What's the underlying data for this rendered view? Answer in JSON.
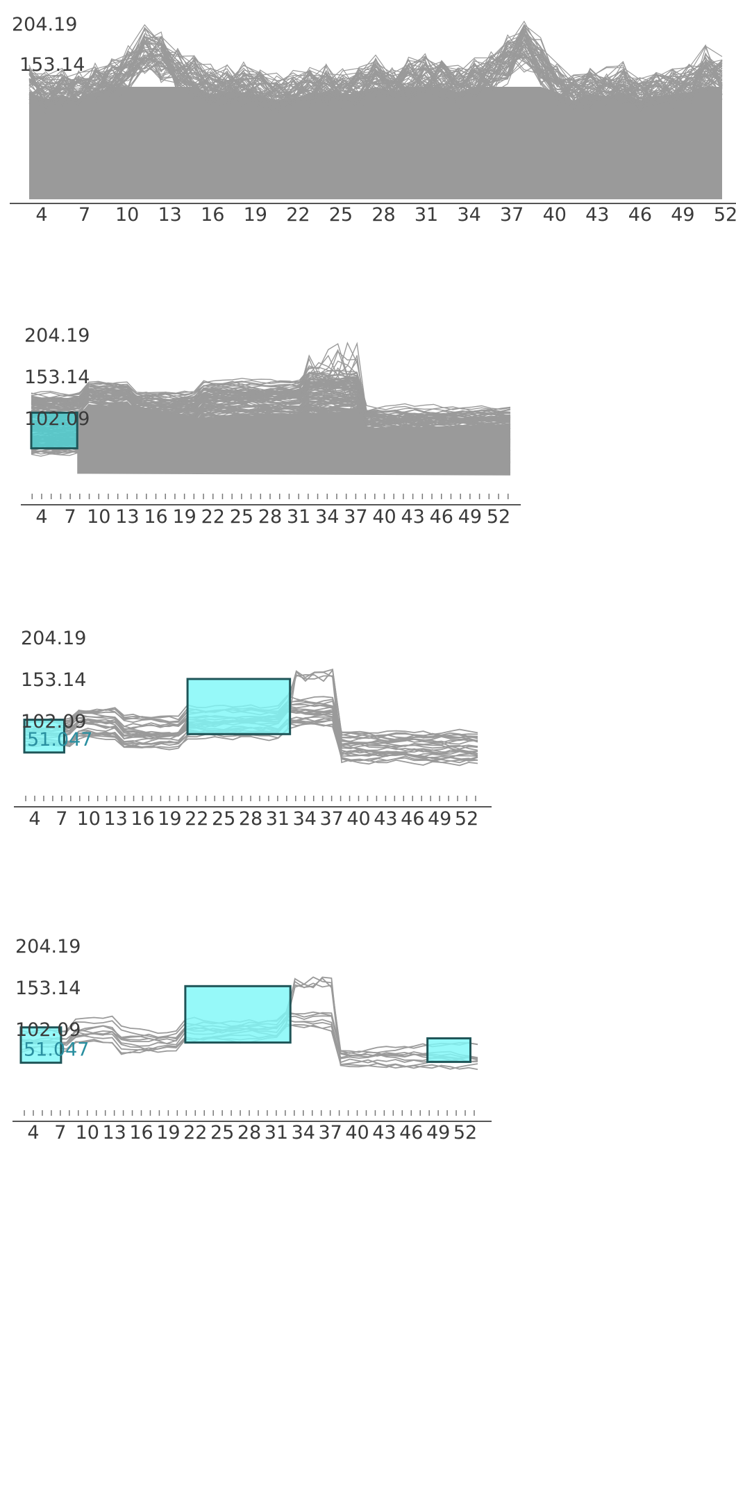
{
  "chart_data": [
    {
      "type": "line",
      "subtype": "timebox-query",
      "x_range": [
        3,
        53
      ],
      "y_tick_labels": [
        "204.19",
        "153.14"
      ],
      "x_tick_labels": [
        "4",
        "7",
        "10",
        "13",
        "16",
        "19",
        "22",
        "25",
        "28",
        "31",
        "34",
        "37",
        "40",
        "43",
        "46",
        "49",
        "52"
      ],
      "minor_ticks": false,
      "line_color": "#9a9a9a",
      "series_count": 600,
      "y_band": [
        0,
        155
      ],
      "y_peak_envelope": [
        150,
        142,
        146,
        141,
        150,
        158,
        172,
        196,
        188,
        170,
        160,
        148,
        150,
        150,
        146,
        140,
        143,
        148,
        150,
        146,
        150,
        162,
        150,
        156,
        162,
        155,
        150,
        158,
        170,
        186,
        204,
        180,
        150,
        140,
        148,
        145,
        150,
        140,
        145,
        148,
        150,
        170,
        165
      ],
      "selections": []
    },
    {
      "type": "line",
      "subtype": "timebox-query",
      "x_range": [
        3,
        53
      ],
      "y_tick_labels": [
        "204.19",
        "153.14",
        "102.09"
      ],
      "x_tick_labels": [
        "4",
        "7",
        "10",
        "13",
        "16",
        "19",
        "22",
        "25",
        "28",
        "31",
        "34",
        "37",
        "40",
        "43",
        "46",
        "49",
        "52"
      ],
      "minor_ticks": true,
      "line_color": "#9a9a9a",
      "series_count": 420,
      "y_band": [
        25,
        100
      ],
      "selections": [
        {
          "x_range": [
            3,
            7.8
          ],
          "y_range": [
            60,
            102
          ],
          "color": "#4dcfd2",
          "border": "#1f5558"
        }
      ]
    },
    {
      "type": "line",
      "subtype": "timebox-query",
      "x_range": [
        3,
        53
      ],
      "y_tick_labels": [
        "204.19",
        "153.14",
        "102.09"
      ],
      "x_tick_labels": [
        "4",
        "7",
        "10",
        "13",
        "16",
        "19",
        "22",
        "25",
        "28",
        "31",
        "34",
        "37",
        "40",
        "43",
        "46",
        "49",
        "52"
      ],
      "minor_ticks": true,
      "line_color": "#9a9a9a",
      "series_count": 26,
      "selections": [
        {
          "x_range": [
            3,
            7.4
          ],
          "y_range": [
            61,
            102
          ],
          "color": "#7ff8f8",
          "border": "#1f5558",
          "label": "51.047"
        },
        {
          "x_range": [
            21,
            32.3
          ],
          "y_range": [
            84,
            153
          ],
          "color": "#7ff8f8",
          "border": "#1f5558"
        }
      ]
    },
    {
      "type": "line",
      "subtype": "timebox-query",
      "x_range": [
        3,
        53
      ],
      "y_tick_labels": [
        "204.19",
        "153.14",
        "102.09"
      ],
      "x_tick_labels": [
        "4",
        "7",
        "10",
        "13",
        "16",
        "19",
        "22",
        "25",
        "28",
        "31",
        "34",
        "37",
        "40",
        "43",
        "46",
        "49",
        "52"
      ],
      "minor_ticks": true,
      "line_color": "#9a9a9a",
      "series_count": 11,
      "selections": [
        {
          "x_range": [
            3,
            7.4
          ],
          "y_range": [
            63,
            105
          ],
          "color": "#7ff8f8",
          "border": "#1f5558",
          "label": "51.047"
        },
        {
          "x_range": [
            21,
            32.5
          ],
          "y_range": [
            87,
            154
          ],
          "color": "#7ff8f8",
          "border": "#1f5558"
        },
        {
          "x_range": [
            47.5,
            52.2
          ],
          "y_range": [
            64,
            92
          ],
          "color": "#7ff8f8",
          "border": "#1f5558"
        }
      ]
    }
  ]
}
